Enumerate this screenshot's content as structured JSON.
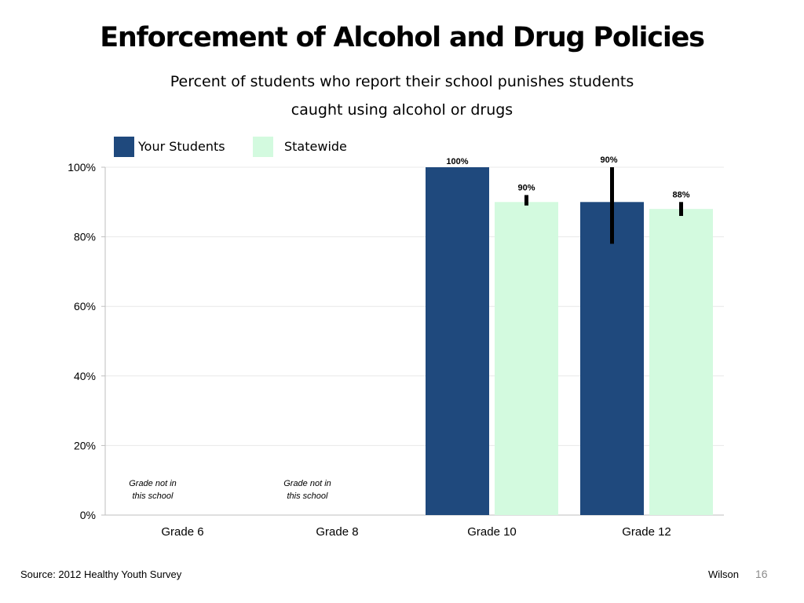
{
  "slide": {
    "title": "Enforcement of Alcohol and Drug Policies",
    "subtitle_line1": "Percent of students who report their school punishes students",
    "subtitle_line2": "caught using alcohol or drugs",
    "source": "Source: 2012 Healthy Youth Survey",
    "author": "Wilson",
    "page_number": "16"
  },
  "colors": {
    "your_students": "#1f497d",
    "statewide": "#d3fadf",
    "error_bar": "#000000",
    "gridline": "#e8e8e8",
    "axis": "#bfbfbf"
  },
  "chart_data": {
    "type": "bar",
    "categories": [
      "Grade 6",
      "Grade 8",
      "Grade 10",
      "Grade 12"
    ],
    "ylim": [
      0,
      100
    ],
    "yticks": [
      0,
      20,
      40,
      60,
      80,
      100
    ],
    "ytick_labels": [
      "0%",
      "20%",
      "40%",
      "60%",
      "80%",
      "100%"
    ],
    "legend_position": "top-left",
    "grid": true,
    "series": [
      {
        "name": "Your Students",
        "color": "#1f497d",
        "values": [
          null,
          null,
          100,
          90
        ],
        "labels": [
          "",
          "",
          "100%",
          "90%"
        ],
        "error_low": [
          null,
          null,
          null,
          78
        ],
        "error_high": [
          null,
          null,
          null,
          100
        ]
      },
      {
        "name": "Statewide",
        "color": "#d3fadf",
        "values": [
          null,
          null,
          90,
          88
        ],
        "labels": [
          "",
          "",
          "90%",
          "88%"
        ],
        "error_low": [
          null,
          null,
          89,
          86
        ],
        "error_high": [
          null,
          null,
          92,
          90
        ]
      }
    ],
    "annotations": [
      {
        "category": "Grade 6",
        "line1": "Grade not in",
        "line2": "this school"
      },
      {
        "category": "Grade 8",
        "line1": "Grade not in",
        "line2": "this school"
      }
    ]
  }
}
